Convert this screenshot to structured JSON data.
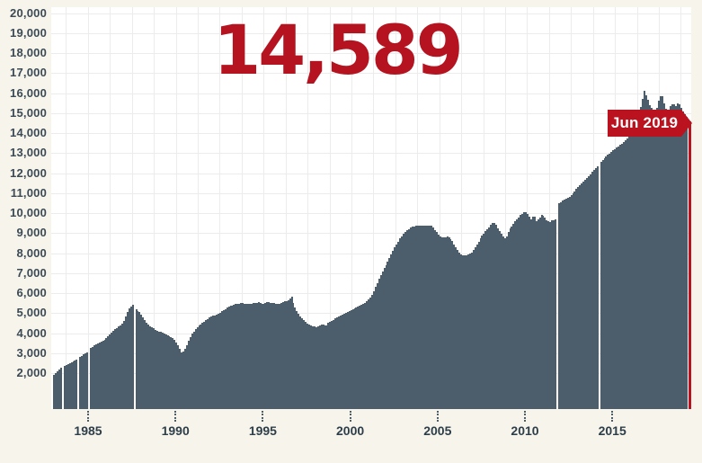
{
  "figure": {
    "big_value": "14,589",
    "flag_label": "Jun 2019",
    "accent_red": "#bb1220",
    "number_red": "#b5131f",
    "bar_color": "#4c5e6b",
    "background": "#f7f4ec",
    "plot_background": "#ffffff",
    "grid_color": "#ececec"
  },
  "chart_data": {
    "type": "bar",
    "title": "14,589",
    "annotation": "Jun 2019",
    "xlabel": "",
    "ylabel": "",
    "xlim": [
      1983,
      2019.5
    ],
    "ylim": [
      0,
      20000
    ],
    "grid": true,
    "legend": "none",
    "final_value": 14589,
    "final_period": "Jun 2019",
    "y_ticks": [
      {
        "v": 20000,
        "label": "20,000"
      },
      {
        "v": 19000,
        "label": "19,000"
      },
      {
        "v": 18000,
        "label": "18,000"
      },
      {
        "v": 17000,
        "label": "17,000"
      },
      {
        "v": 16000,
        "label": "16,000"
      },
      {
        "v": 15000,
        "label": "15,000"
      },
      {
        "v": 14000,
        "label": "14,000"
      },
      {
        "v": 13000,
        "label": "13,000"
      },
      {
        "v": 12000,
        "label": "12,000"
      },
      {
        "v": 11000,
        "label": "11,000"
      },
      {
        "v": 10000,
        "label": "10,000"
      },
      {
        "v": 9000,
        "label": "9,000"
      },
      {
        "v": 8000,
        "label": "8,000"
      },
      {
        "v": 7000,
        "label": "7,000"
      },
      {
        "v": 6000,
        "label": "6,000"
      },
      {
        "v": 5000,
        "label": "5,000"
      },
      {
        "v": 4000,
        "label": "4,000"
      },
      {
        "v": 3000,
        "label": "3,000"
      },
      {
        "v": 2000,
        "label": "2,000"
      }
    ],
    "x_ticks": [
      {
        "year": 1985,
        "label": "1985"
      },
      {
        "year": 1990,
        "label": "1990"
      },
      {
        "year": 1995,
        "label": "1995"
      },
      {
        "year": 2000,
        "label": "2000"
      },
      {
        "year": 2005,
        "label": "2005"
      },
      {
        "year": 2010,
        "label": "2010"
      },
      {
        "year": 2015,
        "label": "2015"
      }
    ],
    "gap_years": [
      1983.53,
      1984.44,
      1985.03,
      1987.67,
      2011.85,
      2014.25
    ],
    "bar_step_years": 0.1,
    "keypoints": [
      [
        1983.05,
        1900
      ],
      [
        1983.2,
        2050
      ],
      [
        1983.35,
        2200
      ],
      [
        1983.5,
        2300
      ],
      [
        1983.6,
        2350
      ],
      [
        1983.8,
        2450
      ],
      [
        1984.0,
        2500
      ],
      [
        1984.2,
        2600
      ],
      [
        1984.4,
        2700
      ],
      [
        1984.5,
        2800
      ],
      [
        1984.7,
        2900
      ],
      [
        1984.95,
        3050
      ],
      [
        1985.1,
        3250
      ],
      [
        1985.3,
        3350
      ],
      [
        1985.6,
        3500
      ],
      [
        1986.0,
        3700
      ],
      [
        1986.5,
        4150
      ],
      [
        1987.0,
        4500
      ],
      [
        1987.2,
        4950
      ],
      [
        1987.35,
        5250
      ],
      [
        1987.5,
        5400
      ],
      [
        1987.62,
        5450
      ],
      [
        1987.75,
        5200
      ],
      [
        1988.0,
        5000
      ],
      [
        1988.4,
        4450
      ],
      [
        1988.9,
        4150
      ],
      [
        1989.4,
        3950
      ],
      [
        1989.9,
        3750
      ],
      [
        1990.15,
        3400
      ],
      [
        1990.35,
        3050
      ],
      [
        1990.5,
        3100
      ],
      [
        1990.7,
        3500
      ],
      [
        1990.9,
        3900
      ],
      [
        1991.2,
        4250
      ],
      [
        1991.6,
        4550
      ],
      [
        1992.0,
        4800
      ],
      [
        1992.5,
        5000
      ],
      [
        1993.0,
        5300
      ],
      [
        1993.4,
        5450
      ],
      [
        1993.8,
        5500
      ],
      [
        1994.2,
        5450
      ],
      [
        1994.5,
        5500
      ],
      [
        1994.8,
        5550
      ],
      [
        1995.0,
        5450
      ],
      [
        1995.3,
        5550
      ],
      [
        1995.6,
        5500
      ],
      [
        1995.9,
        5450
      ],
      [
        1996.1,
        5550
      ],
      [
        1996.3,
        5600
      ],
      [
        1996.5,
        5650
      ],
      [
        1996.62,
        5900
      ],
      [
        1996.75,
        5500
      ],
      [
        1997.0,
        5000
      ],
      [
        1997.3,
        4700
      ],
      [
        1997.6,
        4450
      ],
      [
        1997.85,
        4350
      ],
      [
        1998.1,
        4300
      ],
      [
        1998.35,
        4450
      ],
      [
        1998.6,
        4350
      ],
      [
        1998.8,
        4550
      ],
      [
        1999.2,
        4750
      ],
      [
        1999.6,
        4950
      ],
      [
        2000.0,
        5150
      ],
      [
        2000.5,
        5350
      ],
      [
        2000.9,
        5550
      ],
      [
        2001.2,
        5800
      ],
      [
        2001.5,
        6400
      ],
      [
        2001.8,
        7000
      ],
      [
        2002.1,
        7500
      ],
      [
        2002.5,
        8200
      ],
      [
        2002.9,
        8800
      ],
      [
        2003.2,
        9100
      ],
      [
        2003.5,
        9300
      ],
      [
        2003.8,
        9400
      ],
      [
        2004.1,
        9350
      ],
      [
        2004.4,
        9400
      ],
      [
        2004.7,
        9350
      ],
      [
        2004.9,
        9100
      ],
      [
        2005.1,
        8850
      ],
      [
        2005.4,
        8750
      ],
      [
        2005.6,
        8850
      ],
      [
        2005.85,
        8600
      ],
      [
        2006.1,
        8200
      ],
      [
        2006.4,
        7880
      ],
      [
        2006.6,
        7880
      ],
      [
        2006.9,
        7980
      ],
      [
        2007.2,
        8350
      ],
      [
        2007.5,
        8800
      ],
      [
        2007.8,
        9150
      ],
      [
        2008.0,
        9350
      ],
      [
        2008.2,
        9550
      ],
      [
        2008.35,
        9400
      ],
      [
        2008.55,
        9100
      ],
      [
        2008.75,
        8850
      ],
      [
        2008.9,
        8700
      ],
      [
        2009.1,
        9150
      ],
      [
        2009.4,
        9550
      ],
      [
        2009.7,
        9850
      ],
      [
        2010.0,
        10100
      ],
      [
        2010.2,
        9900
      ],
      [
        2010.35,
        9700
      ],
      [
        2010.5,
        9900
      ],
      [
        2010.65,
        9600
      ],
      [
        2010.8,
        9750
      ],
      [
        2011.0,
        9950
      ],
      [
        2011.2,
        9700
      ],
      [
        2011.4,
        9550
      ],
      [
        2011.6,
        9650
      ],
      [
        2011.78,
        9700
      ],
      [
        2011.88,
        10450
      ],
      [
        2012.2,
        10650
      ],
      [
        2012.6,
        10850
      ],
      [
        2013.0,
        11250
      ],
      [
        2013.5,
        11700
      ],
      [
        2014.0,
        12200
      ],
      [
        2014.2,
        12400
      ],
      [
        2014.4,
        12600
      ],
      [
        2014.8,
        12950
      ],
      [
        2015.2,
        13250
      ],
      [
        2015.6,
        13500
      ],
      [
        2016.0,
        13850
      ],
      [
        2016.3,
        14150
      ],
      [
        2016.4,
        14400
      ],
      [
        2016.55,
        14900
      ],
      [
        2016.7,
        15500
      ],
      [
        2016.85,
        16100
      ],
      [
        2017.0,
        15800
      ],
      [
        2017.15,
        15400
      ],
      [
        2017.35,
        15150
      ],
      [
        2017.5,
        15100
      ],
      [
        2017.65,
        15600
      ],
      [
        2017.8,
        16000
      ],
      [
        2017.95,
        15500
      ],
      [
        2018.1,
        15100
      ],
      [
        2018.2,
        15000
      ],
      [
        2018.35,
        15350
      ],
      [
        2018.5,
        15500
      ],
      [
        2018.65,
        15350
      ],
      [
        2018.8,
        15550
      ],
      [
        2018.95,
        15250
      ],
      [
        2019.1,
        15000
      ],
      [
        2019.2,
        14850
      ],
      [
        2019.3,
        14750
      ]
    ]
  }
}
